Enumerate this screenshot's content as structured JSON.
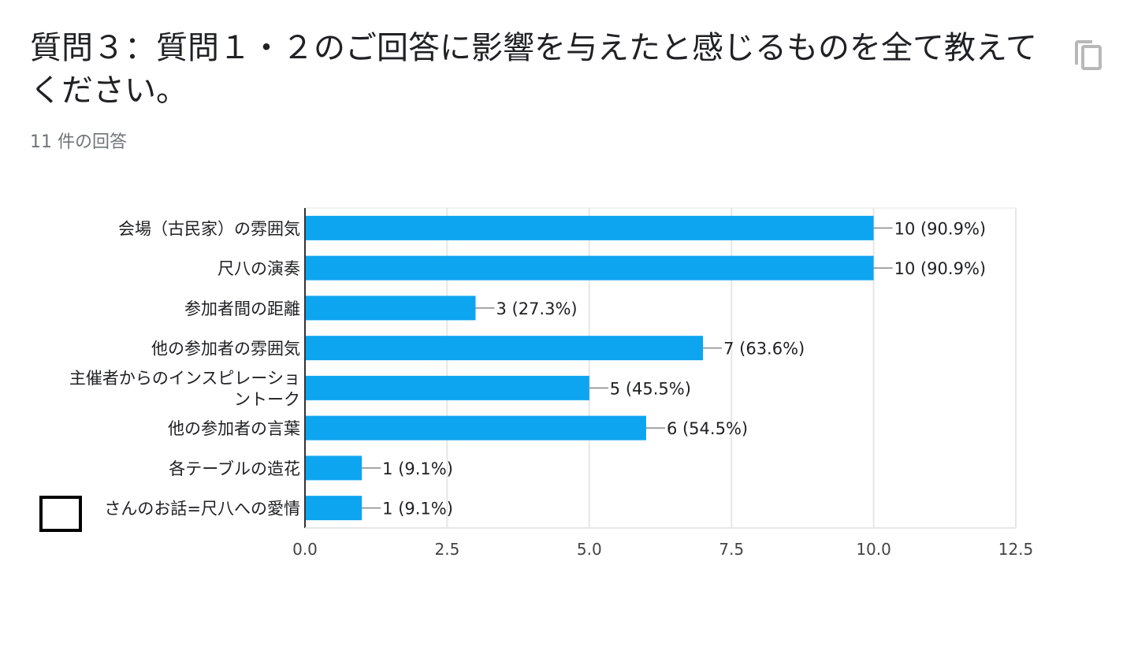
{
  "header": {
    "title": "質問３：質問１・２のご回答に影響を与えたと感じるものを全て教えてください。",
    "response_count": "11 件の回答",
    "copy_icon": "copy-icon"
  },
  "chart_data": {
    "type": "bar",
    "orientation": "horizontal",
    "categories": [
      [
        "会場（古民家）の雰囲気"
      ],
      [
        "尺八の演奏"
      ],
      [
        "参加者間の距離"
      ],
      [
        "他の参加者の雰囲気"
      ],
      [
        "主催者からのインスピレーショ",
        "ントーク"
      ],
      [
        "他の参加者の言葉"
      ],
      [
        "各テーブルの造花"
      ],
      [
        "さんのお話=尺八への愛情"
      ]
    ],
    "values": [
      10,
      10,
      3,
      7,
      5,
      6,
      1,
      1
    ],
    "value_labels": [
      "10 (90.9%)",
      "10 (90.9%)",
      "3 (27.3%)",
      "7 (63.6%)",
      "5 (45.5%)",
      "6 (54.5%)",
      "1 (9.1%)",
      "1 (9.1%)"
    ],
    "xlim": [
      0,
      12.5
    ],
    "xticks": [
      "0.0",
      "2.5",
      "5.0",
      "7.5",
      "10.0",
      "12.5"
    ],
    "grid": true,
    "colors": {
      "bar": "#0ea5f0",
      "grid": "#e6e6e6",
      "axis": "#333333",
      "leader": "#888888"
    }
  }
}
